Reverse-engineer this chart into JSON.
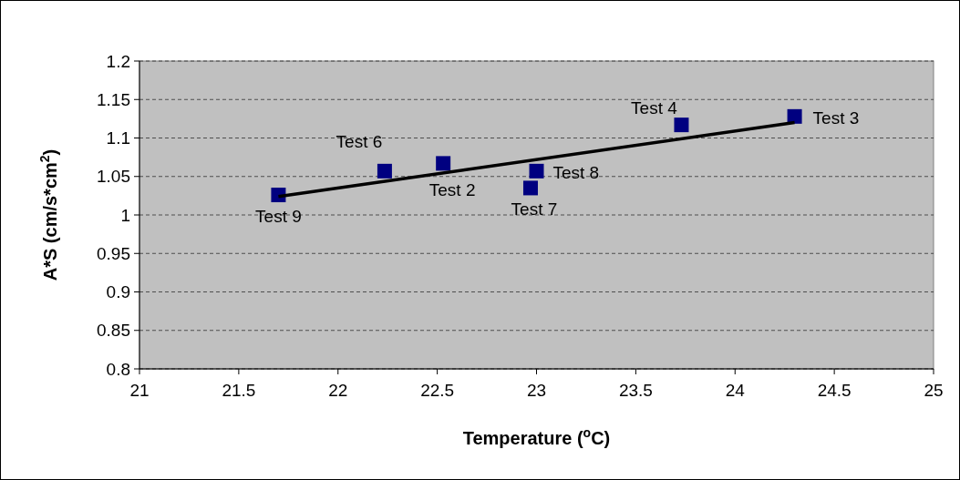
{
  "chart_data": {
    "type": "scatter",
    "xlabel": "Temperature ($^{o}$C)",
    "ylabel": "A*S (cm/s*cm$^{2}$)",
    "xlim": [
      21,
      25
    ],
    "xticks": [
      21,
      21.5,
      22,
      22.5,
      23,
      23.5,
      24,
      24.5,
      25
    ],
    "ylim": [
      0.8,
      1.2
    ],
    "yticks": [
      0.8,
      0.85,
      0.9,
      0.95,
      1,
      1.05,
      1.1,
      1.15,
      1.2
    ],
    "grid": "y",
    "series": [
      {
        "type": "scatter",
        "marker": "square",
        "color": "#000080",
        "x": [
          21.7,
          22.235,
          22.53,
          22.97,
          23.0,
          23.73,
          24.3
        ],
        "values": [
          1.026,
          1.057,
          1.067,
          1.035,
          1.057,
          1.117,
          1.128
        ]
      },
      {
        "type": "line",
        "color": "#000000",
        "x": [
          21.7,
          24.3
        ],
        "values": [
          1.024,
          1.12
        ]
      }
    ],
    "annotations": [
      {
        "text": "Test 9",
        "x": 21.7,
        "y": 1.026
      },
      {
        "text": "Test 6",
        "x": 22.235,
        "y": 1.057
      },
      {
        "text": "Test 2",
        "x": 22.53,
        "y": 1.067
      },
      {
        "text": "Test 7",
        "x": 22.97,
        "y": 1.035
      },
      {
        "text": "Test 8",
        "x": 23.0,
        "y": 1.057
      },
      {
        "text": "Test 4",
        "x": 23.73,
        "y": 1.117
      },
      {
        "text": "Test 3",
        "x": 24.3,
        "y": 1.128
      }
    ]
  }
}
